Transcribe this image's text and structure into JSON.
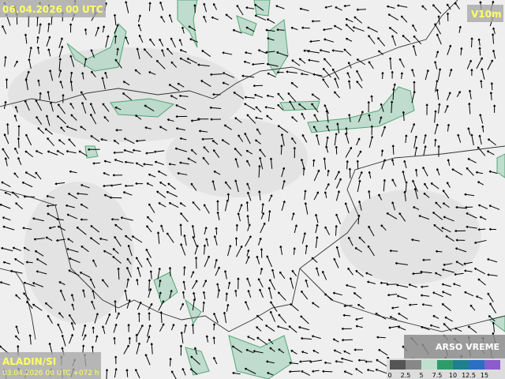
{
  "header": {
    "valid_time": "06.04.2026 00 UTC",
    "field": "V10m"
  },
  "footer": {
    "model": "ALADIN/SI",
    "run": "03.04.2026 00 UTC +072 h",
    "brand": "ARSO VREME"
  },
  "legend": {
    "ticks": [
      0,
      2.5,
      5,
      7.5,
      10,
      12.5,
      15
    ]
  }
}
